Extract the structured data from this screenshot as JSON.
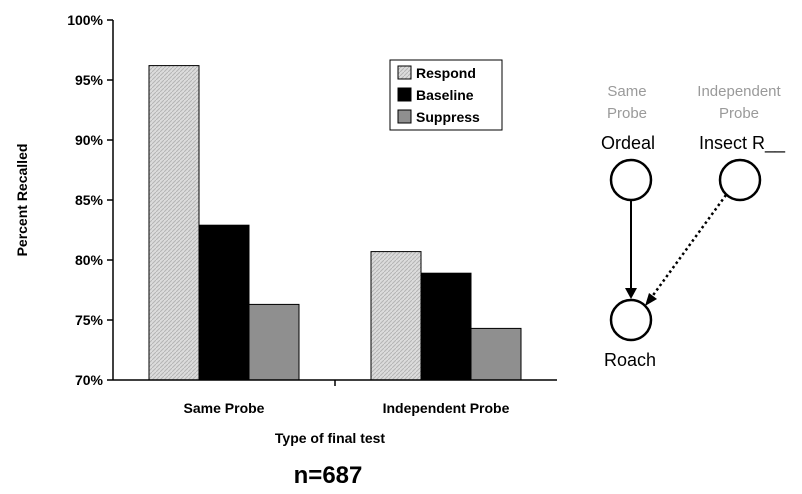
{
  "chart_data": {
    "type": "bar",
    "categories": [
      "Same Probe",
      "Independent Probe"
    ],
    "series": [
      {
        "name": "Respond",
        "values": [
          96.2,
          80.7
        ]
      },
      {
        "name": "Baseline",
        "values": [
          82.9,
          78.9
        ]
      },
      {
        "name": "Suppress",
        "values": [
          76.3,
          74.3
        ]
      }
    ],
    "xlabel": "Type of final test",
    "ylabel": "Percent Recalled",
    "ylim": [
      70,
      100
    ],
    "yticks": [
      "70%",
      "75%",
      "80%",
      "85%",
      "90%",
      "95%",
      "100%"
    ],
    "grid": false,
    "legend_position": "top-right",
    "colors": {
      "Respond": "#d6d6d6",
      "Baseline": "#000000",
      "Suppress": "#8f8f8f"
    },
    "annotation": "n=687"
  },
  "diagram": {
    "probe_labels": {
      "same": [
        "Same",
        "Probe"
      ],
      "independent": [
        "Independent",
        "Probe"
      ]
    },
    "nodes": {
      "ordeal": "Ordeal",
      "insect": "Insect R__",
      "roach": "Roach"
    }
  }
}
